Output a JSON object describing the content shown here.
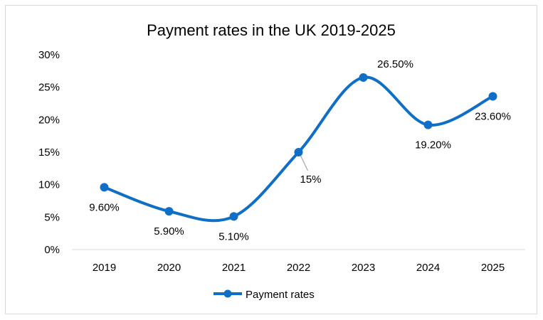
{
  "chart_data": {
    "type": "line",
    "title": "Payment rates in the UK 2019-2025",
    "xlabel": "",
    "ylabel": "",
    "categories": [
      "2019",
      "2020",
      "2021",
      "2022",
      "2023",
      "2024",
      "2025"
    ],
    "series": [
      {
        "name": "Payment rates",
        "values": [
          9.6,
          5.9,
          5.1,
          15,
          26.5,
          19.2,
          23.6
        ],
        "labels": [
          "9.60%",
          "5.90%",
          "5.10%",
          "15%",
          "26.50%",
          "19.20%",
          "23.60%"
        ],
        "color": "#0F6FC6"
      }
    ],
    "ylim": [
      0,
      30
    ],
    "yticks": [
      0,
      5,
      10,
      15,
      20,
      25,
      30
    ],
    "ytick_labels": [
      "0%",
      "5%",
      "10%",
      "15%",
      "20%",
      "25%",
      "30%"
    ],
    "grid": false,
    "smooth": true,
    "legend": "bottom",
    "axis_color": "#d9d9d9",
    "leader_line_color": "#a6a6a6"
  }
}
